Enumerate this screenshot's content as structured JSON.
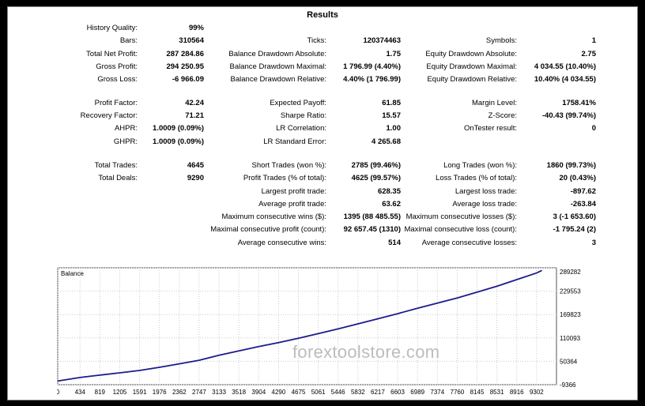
{
  "report": {
    "title": "Results",
    "rows": [
      {
        "cells": [
          {
            "label": "History Quality:",
            "value": "99%"
          }
        ]
      },
      {
        "cells": [
          {
            "label": "Bars:",
            "value": "310564"
          },
          {
            "label": "Ticks:",
            "value": "120374463"
          },
          {
            "label": "Symbols:",
            "value": "1"
          }
        ]
      },
      {
        "cells": [
          {
            "label": "Total Net Profit:",
            "value": "287 284.86"
          },
          {
            "label": "Balance Drawdown Absolute:",
            "value": "1.75"
          },
          {
            "label": "Equity Drawdown Absolute:",
            "value": "2.75"
          }
        ]
      },
      {
        "cells": [
          {
            "label": "Gross Profit:",
            "value": "294 250.95"
          },
          {
            "label": "Balance Drawdown Maximal:",
            "value": "1 796.99 (4.40%)"
          },
          {
            "label": "Equity Drawdown Maximal:",
            "value": "4 034.55 (10.40%)"
          }
        ]
      },
      {
        "cells": [
          {
            "label": "Gross Loss:",
            "value": "-6 966.09"
          },
          {
            "label": "Balance Drawdown Relative:",
            "value": "4.40% (1 796.99)"
          },
          {
            "label": "Equity Drawdown Relative:",
            "value": "10.40% (4 034.55)"
          }
        ]
      },
      {
        "cells": [
          {
            "label": "Profit Factor:",
            "value": "42.24"
          },
          {
            "label": "Expected Payoff:",
            "value": "61.85"
          },
          {
            "label": "Margin Level:",
            "value": "1758.41%"
          }
        ]
      },
      {
        "cells": [
          {
            "label": "Recovery Factor:",
            "value": "71.21"
          },
          {
            "label": "Sharpe Ratio:",
            "value": "15.57"
          },
          {
            "label": "Z-Score:",
            "value": "-40.43 (99.74%)"
          }
        ]
      },
      {
        "cells": [
          {
            "label": "AHPR:",
            "value": "1.0009 (0.09%)"
          },
          {
            "label": "LR Correlation:",
            "value": "1.00"
          },
          {
            "label": "OnTester result:",
            "value": "0"
          }
        ]
      },
      {
        "cells": [
          {
            "label": "GHPR:",
            "value": "1.0009 (0.09%)"
          },
          {
            "label": "LR Standard Error:",
            "value": "4 265.68"
          }
        ]
      },
      {
        "cells": [
          {
            "label": "Total Trades:",
            "value": "4645"
          },
          {
            "label": "Short Trades (won %):",
            "value": "2785 (99.46%)"
          },
          {
            "label": "Long Trades (won %):",
            "value": "1860 (99.73%)"
          }
        ]
      },
      {
        "cells": [
          {
            "label": "Total Deals:",
            "value": "9290"
          },
          {
            "label": "Profit Trades (% of total):",
            "value": "4625 (99.57%)"
          },
          {
            "label": "Loss Trades (% of total):",
            "value": "20 (0.43%)"
          }
        ]
      },
      {
        "cells": [
          {
            "label": "Largest profit trade:",
            "value": "628.35"
          },
          {
            "label": "Largest loss trade:",
            "value": "-897.62"
          }
        ]
      },
      {
        "cells": [
          {
            "label": "Average profit trade:",
            "value": "63.62"
          },
          {
            "label": "Average loss trade:",
            "value": "-263.84"
          }
        ]
      },
      {
        "cells": [
          {
            "label": "Maximum consecutive wins ($):",
            "value": "1395 (88 485.55)"
          },
          {
            "label": "Maximum consecutive losses ($):",
            "value": "3 (-1 653.60)"
          }
        ]
      },
      {
        "cells": [
          {
            "label": "Maximal consecutive profit (count):",
            "value": "92 657.45 (1310)"
          },
          {
            "label": "Maximal consecutive loss (count):",
            "value": "-1 795.24 (2)"
          }
        ]
      },
      {
        "cells": [
          {
            "label": "Average consecutive wins:",
            "value": "514"
          },
          {
            "label": "Average consecutive losses:",
            "value": "3"
          }
        ]
      }
    ]
  },
  "chart_data": {
    "type": "line",
    "title": "Balance",
    "series": [
      {
        "name": "Balance",
        "x": [
          0,
          434,
          819,
          1205,
          1591,
          1976,
          2362,
          2747,
          3133,
          3518,
          3904,
          4290,
          4675,
          5061,
          5446,
          5832,
          6217,
          6603,
          6989,
          7374,
          7760,
          8145,
          8531,
          8916,
          9302,
          9400
        ],
        "y": [
          0,
          9000,
          15000,
          21000,
          27000,
          35000,
          44000,
          53000,
          66000,
          77000,
          88000,
          98000,
          109000,
          121000,
          133000,
          146000,
          159000,
          172000,
          186000,
          199000,
          212000,
          227000,
          242000,
          259000,
          276000,
          282000
        ]
      }
    ],
    "x_ticks": [
      "0",
      "434",
      "819",
      "1205",
      "1591",
      "1976",
      "2362",
      "2747",
      "3133",
      "3518",
      "3904",
      "4290",
      "4675",
      "5061",
      "5446",
      "5832",
      "6217",
      "6603",
      "6989",
      "7374",
      "7760",
      "8145",
      "8531",
      "8916",
      "9302"
    ],
    "y_ticks": [
      "289282",
      "229553",
      "169823",
      "110093",
      "50364",
      "-9366"
    ],
    "xlim": [
      0,
      9688
    ],
    "ylim": [
      -9366,
      289282
    ],
    "grid": true,
    "line_color": "#1c1c8c"
  },
  "watermark": "forextoolstore.com"
}
